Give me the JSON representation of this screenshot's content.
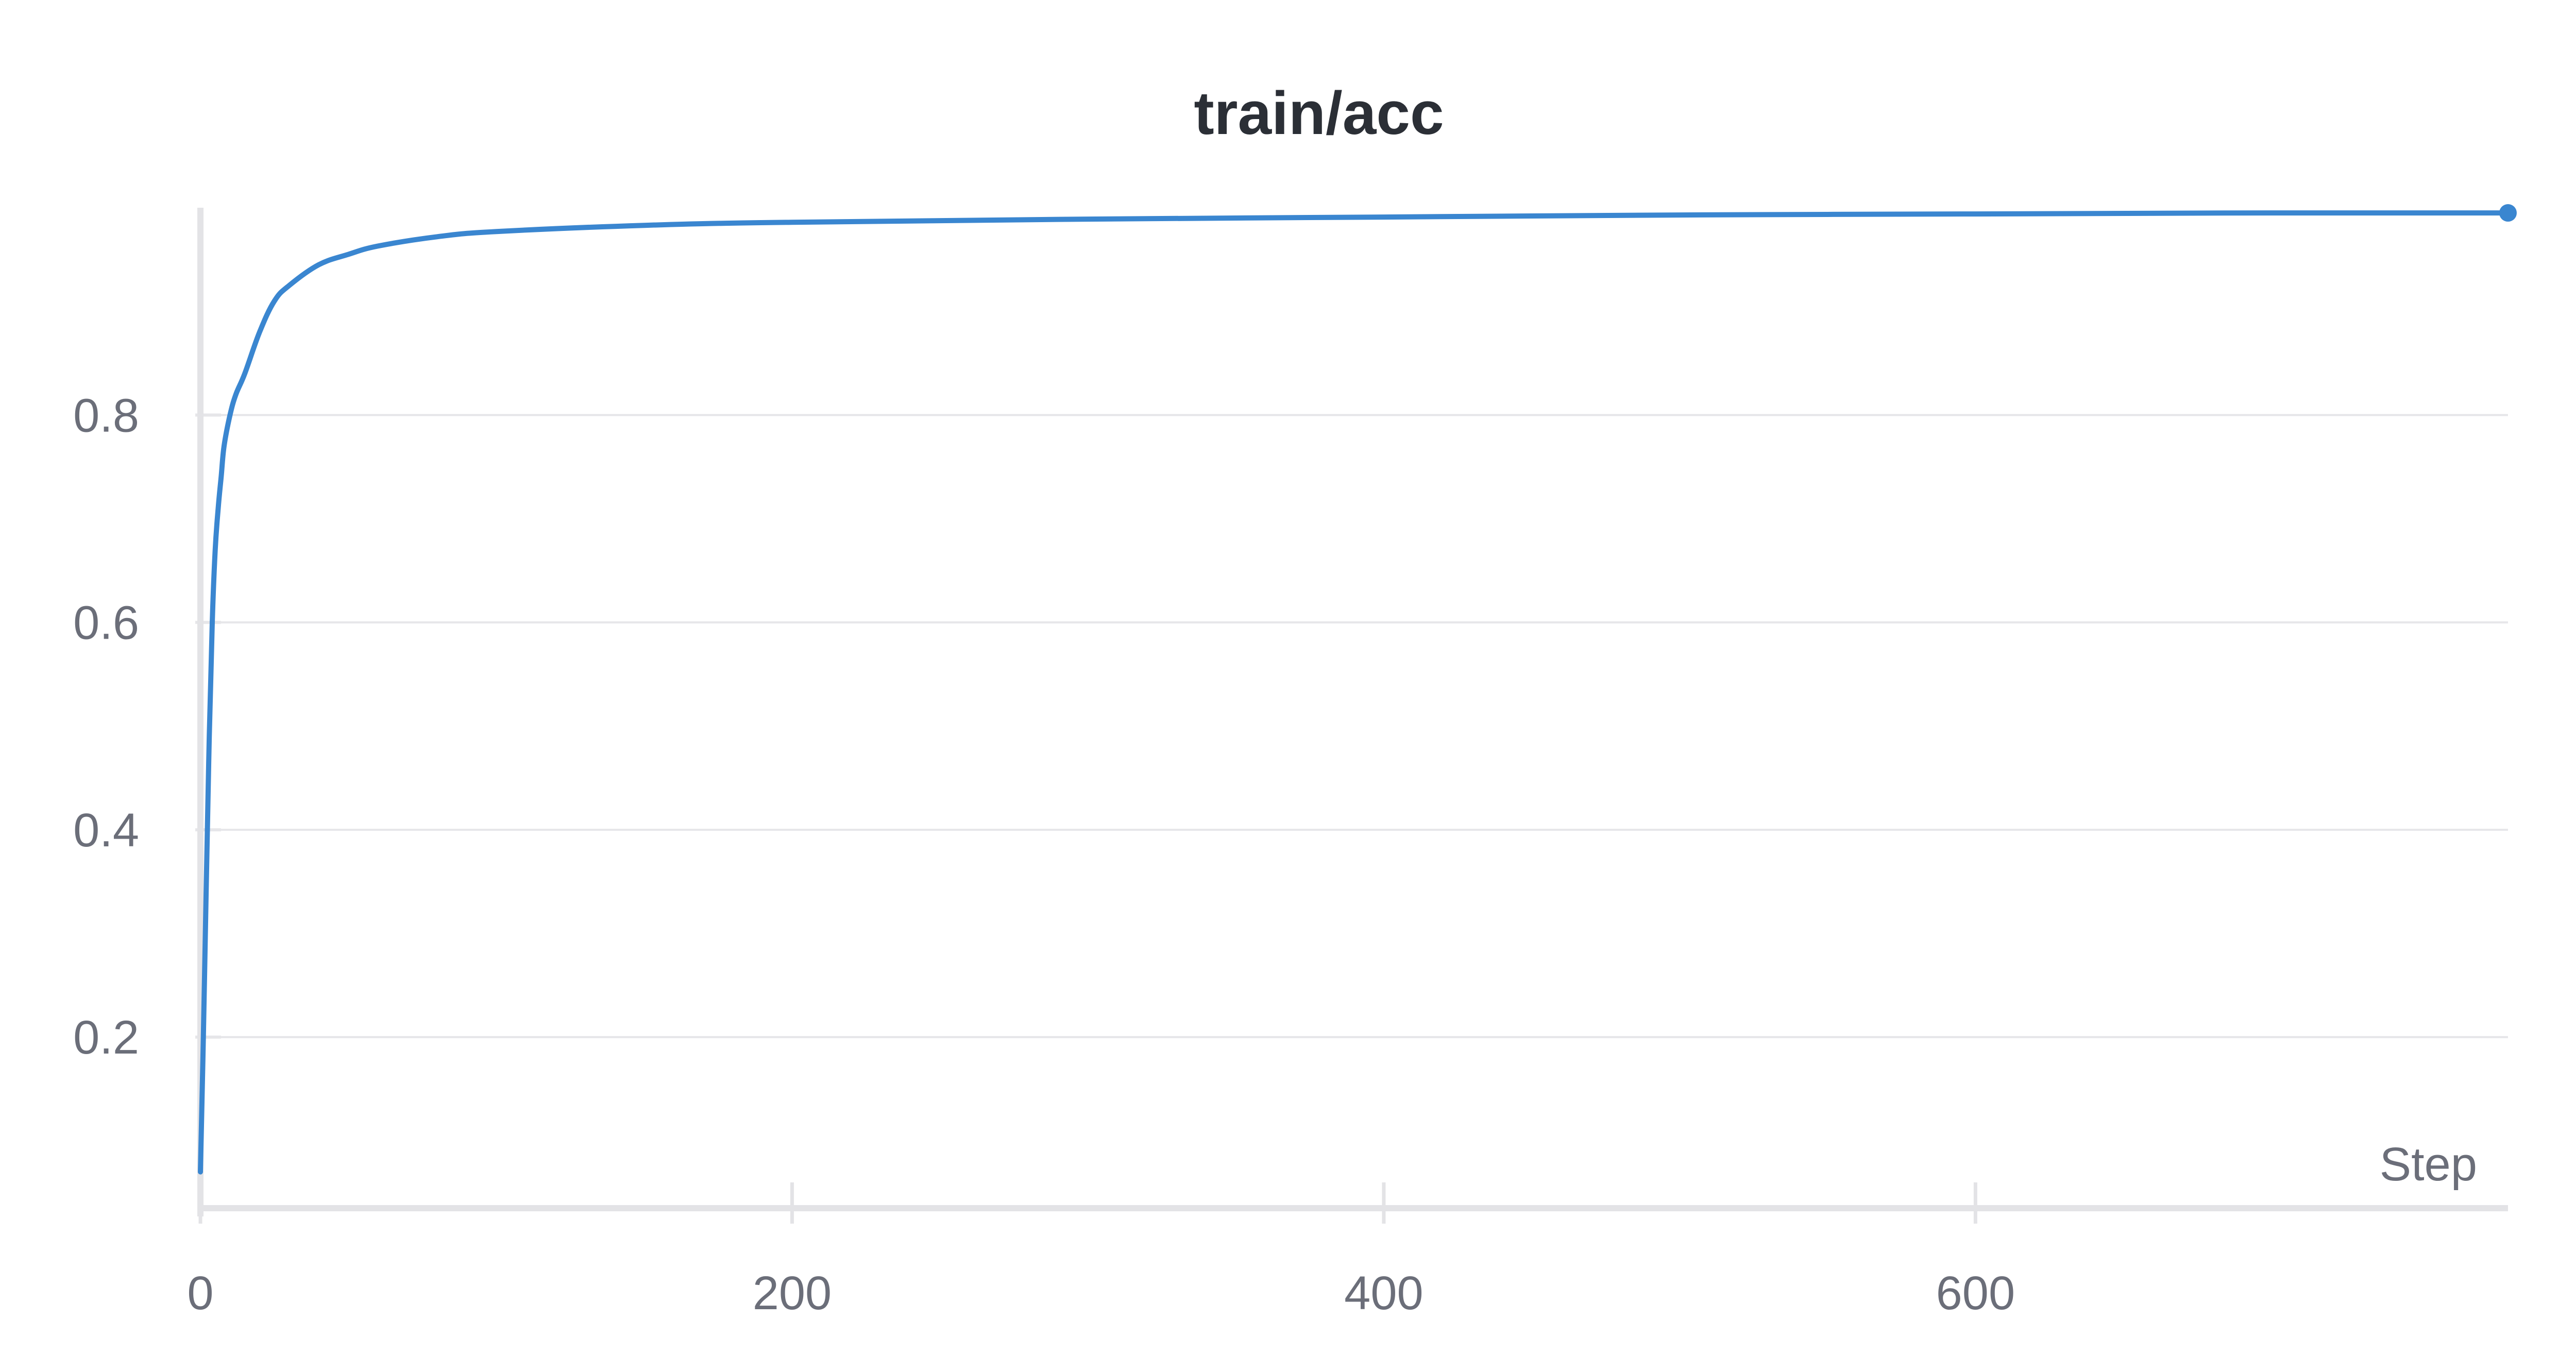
{
  "chart_data": {
    "type": "line",
    "title": "train/acc",
    "xlabel": "Step",
    "ylabel": "",
    "xlim": [
      0,
      780
    ],
    "ylim": [
      0.035,
      1.0
    ],
    "x_ticks": [
      0,
      200,
      400,
      600
    ],
    "x_tick_labels": [
      "0",
      "200",
      "400",
      "600"
    ],
    "y_ticks": [
      0.2,
      0.4,
      0.6,
      0.8
    ],
    "y_tick_labels": [
      "0.2",
      "0.4",
      "0.6",
      "0.8"
    ],
    "grid": true,
    "legend": "none",
    "line_color": "#3a86d0",
    "series": [
      {
        "x": [
          0,
          1,
          2,
          3,
          4,
          5,
          6,
          7,
          8,
          10,
          12,
          15,
          20,
          25,
          30,
          40,
          50,
          60,
          80,
          100,
          150,
          200,
          300,
          400,
          500,
          600,
          700,
          780
        ],
        "y": [
          0.07,
          0.2,
          0.35,
          0.49,
          0.6,
          0.67,
          0.71,
          0.74,
          0.77,
          0.8,
          0.82,
          0.84,
          0.88,
          0.91,
          0.925,
          0.945,
          0.955,
          0.963,
          0.972,
          0.977,
          0.983,
          0.986,
          0.989,
          0.991,
          0.993,
          0.994,
          0.995,
          0.995
        ]
      }
    ],
    "end_marker": {
      "x": 780,
      "y": 0.995
    }
  }
}
